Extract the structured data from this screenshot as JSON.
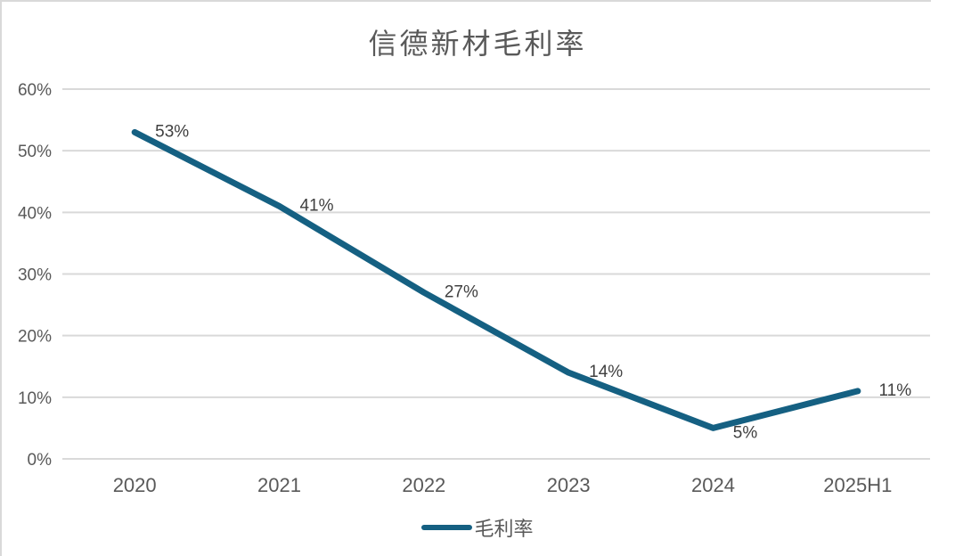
{
  "chart_data": {
    "type": "line",
    "title": "信德新材毛利率",
    "categories": [
      "2020",
      "2021",
      "2022",
      "2023",
      "2024",
      "2025H1"
    ],
    "series": [
      {
        "name": "毛利率",
        "values": [
          53,
          41,
          27,
          14,
          5,
          11
        ]
      }
    ],
    "data_labels": [
      "53%",
      "41%",
      "27%",
      "14%",
      "5%",
      "11%"
    ],
    "y_tick_labels": [
      "60%",
      "50%",
      "40%",
      "30%",
      "20%",
      "10%",
      "0%"
    ],
    "ylim": [
      0,
      60
    ],
    "y_tick_step": 10,
    "grid": "horizontal-only",
    "legend_position": "bottom",
    "colors": {
      "line": "#156082",
      "gridline": "#d9d9d9",
      "axis_text": "#595959",
      "data_label_text": "#404040",
      "title_text": "#595959",
      "border": "#d9d9d9"
    }
  }
}
